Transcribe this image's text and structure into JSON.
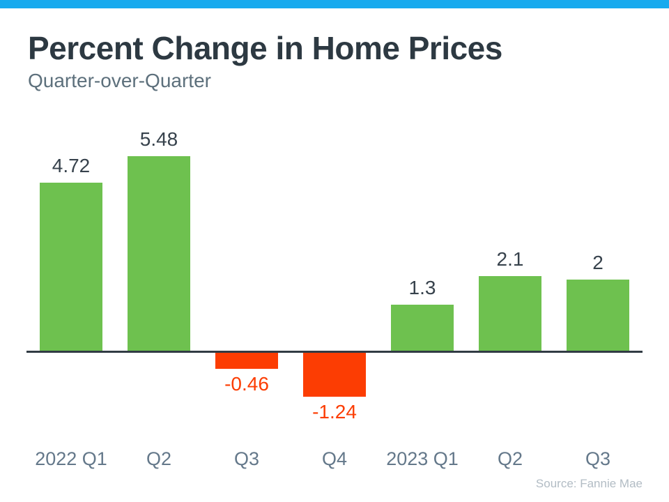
{
  "page": {
    "title": "Percent Change in Home Prices",
    "subtitle": "Quarter-over-Quarter",
    "source": "Source: Fannie Mae",
    "accent_bar_color": "#18aaee"
  },
  "chart_data": {
    "type": "bar",
    "title": "Percent Change in Home Prices",
    "subtitle": "Quarter-over-Quarter",
    "categories": [
      "2022 Q1",
      "Q2",
      "Q3",
      "Q4",
      "2023 Q1",
      "Q2",
      "Q3"
    ],
    "values": [
      4.72,
      5.48,
      -0.46,
      -1.24,
      1.3,
      2.1,
      2
    ],
    "value_labels": [
      "4.72",
      "5.48",
      "-0.46",
      "-1.24",
      "1.3",
      "2.1",
      "2"
    ],
    "xlabel": "",
    "ylabel": "",
    "ylim": [
      -1.5,
      6
    ],
    "grid": false,
    "legend": false,
    "zero_baseline": true,
    "source": "Source: Fannie Mae",
    "colors": {
      "positive_bar": "#6ec14f",
      "negative_bar": "#fc3d03",
      "positive_value_label": "#37424c",
      "negative_value_label": "#fc3d03",
      "axis_line": "#313b44",
      "tick_label": "#64788a"
    }
  }
}
